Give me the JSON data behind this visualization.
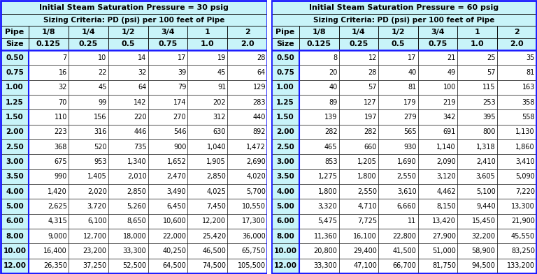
{
  "title_left": "Initial Steam Saturation Pressure = 30 psig",
  "title_right": "Initial Steam Saturation Pressure = 60 psig",
  "subtitle": "Sizing Criteria: PD (psi) per 100 feet of Pipe",
  "col_headers": [
    "1/8",
    "1/4",
    "1/2",
    "3/4",
    "1",
    "2"
  ],
  "col_subheaders": [
    "0.125",
    "0.25",
    "0.5",
    "0.75",
    "1.0",
    "2.0"
  ],
  "pipe_label": "Pipe",
  "size_label": "Size",
  "pipe_sizes": [
    "0.50",
    "0.75",
    "1.00",
    "1.25",
    "1.50",
    "2.00",
    "2.50",
    "3.00",
    "3.50",
    "4.00",
    "5.00",
    "6.00",
    "8.00",
    "10.00",
    "12.00"
  ],
  "data_30psig": [
    [
      "7",
      "10",
      "14",
      "17",
      "19",
      "28"
    ],
    [
      "16",
      "22",
      "32",
      "39",
      "45",
      "64"
    ],
    [
      "32",
      "45",
      "64",
      "79",
      "91",
      "129"
    ],
    [
      "70",
      "99",
      "142",
      "174",
      "202",
      "283"
    ],
    [
      "110",
      "156",
      "220",
      "270",
      "312",
      "440"
    ],
    [
      "223",
      "316",
      "446",
      "546",
      "630",
      "892"
    ],
    [
      "368",
      "520",
      "735",
      "900",
      "1,040",
      "1,472"
    ],
    [
      "675",
      "953",
      "1,340",
      "1,652",
      "1,905",
      "2,690"
    ],
    [
      "990",
      "1,405",
      "2,010",
      "2,470",
      "2,850",
      "4,020"
    ],
    [
      "1,420",
      "2,020",
      "2,850",
      "3,490",
      "4,025",
      "5,700"
    ],
    [
      "2,625",
      "3,720",
      "5,260",
      "6,450",
      "7,450",
      "10,550"
    ],
    [
      "4,315",
      "6,100",
      "8,650",
      "10,600",
      "12,200",
      "17,300"
    ],
    [
      "9,000",
      "12,700",
      "18,000",
      "22,000",
      "25,420",
      "36,000"
    ],
    [
      "16,400",
      "23,200",
      "33,300",
      "40,250",
      "46,500",
      "65,750"
    ],
    [
      "26,350",
      "37,250",
      "52,500",
      "64,500",
      "74,500",
      "105,500"
    ]
  ],
  "data_60psig": [
    [
      "8",
      "12",
      "17",
      "21",
      "25",
      "35"
    ],
    [
      "20",
      "28",
      "40",
      "49",
      "57",
      "81"
    ],
    [
      "40",
      "57",
      "81",
      "100",
      "115",
      "163"
    ],
    [
      "89",
      "127",
      "179",
      "219",
      "253",
      "358"
    ],
    [
      "139",
      "197",
      "279",
      "342",
      "395",
      "558"
    ],
    [
      "282",
      "282",
      "565",
      "691",
      "800",
      "1,130"
    ],
    [
      "465",
      "660",
      "930",
      "1,140",
      "1,318",
      "1,860"
    ],
    [
      "853",
      "1,205",
      "1,690",
      "2,090",
      "2,410",
      "3,410"
    ],
    [
      "1,275",
      "1,800",
      "2,550",
      "3,120",
      "3,605",
      "5,090"
    ],
    [
      "1,800",
      "2,550",
      "3,610",
      "4,462",
      "5,100",
      "7,220"
    ],
    [
      "3,320",
      "4,710",
      "6,660",
      "8,150",
      "9,440",
      "13,300"
    ],
    [
      "5,475",
      "7,725",
      "11",
      "13,420",
      "15,450",
      "21,900"
    ],
    [
      "11,360",
      "16,100",
      "22,800",
      "27,900",
      "32,200",
      "45,550"
    ],
    [
      "20,800",
      "29,400",
      "41,500",
      "51,000",
      "58,900",
      "83,250"
    ],
    [
      "33,300",
      "47,100",
      "66,700",
      "81,750",
      "94,500",
      "133,200"
    ]
  ],
  "header_bg": "#c8f4f9",
  "data_bg": "#ffffff",
  "pipe_col_bg": "#c8f4f9",
  "thin_border": "#000000",
  "thick_border": "#1a1aff",
  "fig_w": 7.68,
  "fig_h": 3.93,
  "dpi": 100
}
